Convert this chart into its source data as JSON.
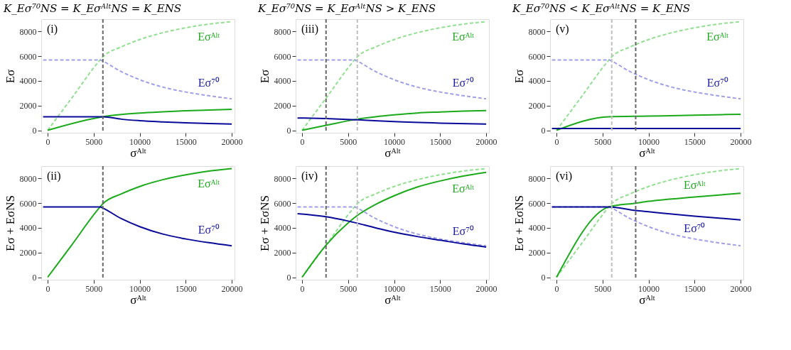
{
  "chart_data": [
    {
      "type": "line",
      "title": "K_Eσ⁷⁰NS = K_EσᴬˡᵗNS = K_ENS",
      "xlabel": "σᴬˡᵗ",
      "ylabel": "Eσ",
      "annotations": [
        "(i)"
      ],
      "xlim": [
        -700,
        20300
      ],
      "ylim": [
        -200,
        9000
      ],
      "xticks": [
        0,
        5000,
        10000,
        15000,
        20000
      ],
      "yticks": [
        0,
        2000,
        4000,
        6000,
        8000
      ],
      "grid": false,
      "series": [
        {
          "name": "Eσᴬˡᵗ",
          "color": "#90e090",
          "line_style": "dashed",
          "x": [
            0,
            2600,
            5700,
            6000,
            8000,
            10000,
            12500,
            15000,
            17500,
            20000
          ],
          "values": [
            0,
            2600,
            5700,
            5950,
            6750,
            7350,
            7900,
            8300,
            8600,
            8800
          ]
        },
        {
          "name": "Eσ⁷⁰",
          "color": "#a0a0e8",
          "line_style": "dashed",
          "x": [
            -500,
            5700,
            6000,
            8000,
            10000,
            12500,
            15000,
            17500,
            20000
          ],
          "values": [
            5700,
            5700,
            5600,
            4750,
            4100,
            3500,
            3100,
            2800,
            2550
          ]
        },
        {
          "color": "#1aaa1a",
          "line_style": "solid",
          "x": [
            0,
            6000,
            8000,
            10000,
            12500,
            15000,
            17500,
            20000
          ],
          "values": [
            0,
            1100,
            1280,
            1400,
            1500,
            1580,
            1640,
            1700
          ]
        },
        {
          "color": "#0a0a9a",
          "line_style": "solid",
          "x": [
            -500,
            6000,
            8000,
            10000,
            12500,
            15000,
            17500,
            20000
          ],
          "values": [
            1100,
            1100,
            900,
            780,
            680,
            600,
            550,
            500
          ]
        }
      ],
      "ref_lines": [
        {
          "axis": "x",
          "value": 6000,
          "color": "#666666",
          "line_style": "dashed"
        }
      ]
    },
    {
      "type": "line",
      "title": "K_Eσ⁷⁰NS = K_EσᴬˡᵗNS > K_ENS",
      "xlabel": "σᴬˡᵗ",
      "ylabel": "Eσ",
      "annotations": [
        "(iii)"
      ],
      "xlim": [
        -700,
        20300
      ],
      "ylim": [
        -200,
        9000
      ],
      "xticks": [
        0,
        5000,
        10000,
        15000,
        20000
      ],
      "yticks": [
        0,
        2000,
        4000,
        6000,
        8000
      ],
      "grid": false,
      "series": [
        {
          "name": "Eσᴬˡᵗ",
          "color": "#90e090",
          "line_style": "dashed",
          "x": [
            0,
            2600,
            5700,
            6000,
            8000,
            10000,
            12500,
            15000,
            17500,
            20000
          ],
          "values": [
            0,
            2600,
            5700,
            5950,
            6750,
            7350,
            7900,
            8300,
            8600,
            8800
          ]
        },
        {
          "name": "Eσ⁷⁰",
          "color": "#a0a0e8",
          "line_style": "dashed",
          "x": [
            -500,
            5700,
            6000,
            8000,
            10000,
            12500,
            15000,
            17500,
            20000
          ],
          "values": [
            5700,
            5700,
            5600,
            4750,
            4100,
            3500,
            3100,
            2800,
            2550
          ]
        },
        {
          "color": "#1aaa1a",
          "line_style": "solid",
          "x": [
            0,
            2600,
            6000,
            8000,
            10000,
            12500,
            15000,
            17500,
            20000
          ],
          "values": [
            0,
            400,
            900,
            1100,
            1250,
            1400,
            1480,
            1550,
            1600
          ]
        },
        {
          "color": "#0a0a9a",
          "line_style": "solid",
          "x": [
            -500,
            2600,
            6000,
            10000,
            15000,
            20000
          ],
          "values": [
            1000,
            950,
            850,
            700,
            580,
            500
          ]
        }
      ],
      "ref_lines": [
        {
          "axis": "x",
          "value": 2600,
          "color": "#666666",
          "line_style": "dashed"
        },
        {
          "axis": "x",
          "value": 6000,
          "color": "#c0c0c0",
          "line_style": "dashed"
        }
      ]
    },
    {
      "type": "line",
      "title": "K_Eσ⁷⁰NS < K_EσᴬˡᵗNS = K_ENS",
      "xlabel": "σᴬˡᵗ",
      "ylabel": "Eσ",
      "annotations": [
        "(v)"
      ],
      "xlim": [
        -700,
        20300
      ],
      "ylim": [
        -200,
        9000
      ],
      "xticks": [
        0,
        5000,
        10000,
        15000,
        20000
      ],
      "yticks": [
        0,
        2000,
        4000,
        6000,
        8000
      ],
      "grid": false,
      "series": [
        {
          "name": "Eσᴬˡᵗ",
          "color": "#90e090",
          "line_style": "dashed",
          "x": [
            0,
            2600,
            5700,
            6000,
            8000,
            10000,
            12500,
            15000,
            17500,
            20000
          ],
          "values": [
            0,
            2600,
            5700,
            5950,
            6750,
            7350,
            7900,
            8300,
            8600,
            8800
          ]
        },
        {
          "name": "Eσ⁷⁰",
          "color": "#a0a0e8",
          "line_style": "dashed",
          "x": [
            -500,
            5700,
            6000,
            8000,
            10000,
            12500,
            15000,
            17500,
            20000
          ],
          "values": [
            5700,
            5700,
            5600,
            4750,
            4100,
            3500,
            3100,
            2800,
            2550
          ]
        },
        {
          "color": "#1aaa1a",
          "line_style": "solid",
          "x": [
            0,
            5700,
            10000,
            15000,
            20000
          ],
          "values": [
            0,
            1100,
            1150,
            1220,
            1300
          ]
        },
        {
          "color": "#0a0a9a",
          "line_style": "solid",
          "x": [
            -500,
            20000
          ],
          "values": [
            150,
            150
          ]
        }
      ],
      "ref_lines": [
        {
          "axis": "x",
          "value": 6000,
          "color": "#c0c0c0",
          "line_style": "dashed"
        },
        {
          "axis": "x",
          "value": 8600,
          "color": "#666666",
          "line_style": "dashed"
        }
      ]
    },
    {
      "type": "line",
      "xlabel": "σᴬˡᵗ",
      "ylabel": "Eσ + EσNS",
      "annotations": [
        "(ii)"
      ],
      "xlim": [
        -700,
        20300
      ],
      "ylim": [
        -200,
        9000
      ],
      "xticks": [
        0,
        5000,
        10000,
        15000,
        20000
      ],
      "yticks": [
        0,
        2000,
        4000,
        6000,
        8000
      ],
      "grid": false,
      "series": [
        {
          "name": "Eσᴬˡᵗ",
          "color": "#1aaa1a",
          "line_style": "solid",
          "x": [
            0,
            2600,
            5700,
            6000,
            8000,
            10000,
            12500,
            15000,
            17500,
            20000
          ],
          "values": [
            0,
            2600,
            5700,
            5950,
            6750,
            7350,
            7900,
            8300,
            8600,
            8800
          ]
        },
        {
          "name": "Eσ⁷⁰",
          "color": "#0a0a9a",
          "line_style": "solid",
          "x": [
            -500,
            5700,
            6000,
            8000,
            10000,
            12500,
            15000,
            17500,
            20000
          ],
          "values": [
            5700,
            5700,
            5600,
            4750,
            4100,
            3500,
            3100,
            2800,
            2550
          ]
        }
      ],
      "ref_lines": [
        {
          "axis": "x",
          "value": 6000,
          "color": "#666666",
          "line_style": "dashed"
        }
      ]
    },
    {
      "type": "line",
      "xlabel": "σᴬˡᵗ",
      "ylabel": "Eσ + EσNS",
      "annotations": [
        "(iv)"
      ],
      "xlim": [
        -700,
        20300
      ],
      "ylim": [
        -200,
        9000
      ],
      "xticks": [
        0,
        5000,
        10000,
        15000,
        20000
      ],
      "yticks": [
        0,
        2000,
        4000,
        6000,
        8000
      ],
      "grid": false,
      "series": [
        {
          "color": "#90e090",
          "line_style": "dashed",
          "x": [
            0,
            2600,
            5700,
            6000,
            8000,
            10000,
            12500,
            15000,
            17500,
            20000
          ],
          "values": [
            0,
            2600,
            5700,
            5950,
            6750,
            7350,
            7900,
            8300,
            8600,
            8800
          ]
        },
        {
          "color": "#a0a0e8",
          "line_style": "dashed",
          "x": [
            -500,
            5700,
            6000,
            8000,
            10000,
            12500,
            15000,
            17500,
            20000
          ],
          "values": [
            5700,
            5700,
            5600,
            4750,
            4100,
            3500,
            3100,
            2800,
            2550
          ]
        },
        {
          "name": "Eσᴬˡᵗ",
          "color": "#1aaa1a",
          "line_style": "solid",
          "x": [
            0,
            2600,
            5000,
            6000,
            8000,
            10000,
            12500,
            15000,
            17500,
            20000
          ],
          "values": [
            0,
            2600,
            4400,
            5000,
            5900,
            6600,
            7300,
            7800,
            8200,
            8500
          ]
        },
        {
          "name": "Eσ⁷⁰",
          "color": "#0a0a9a",
          "line_style": "solid",
          "x": [
            -500,
            2600,
            5000,
            8000,
            10000,
            12500,
            15000,
            17500,
            20000
          ],
          "values": [
            5150,
            4900,
            4550,
            4000,
            3650,
            3300,
            3000,
            2700,
            2450
          ]
        }
      ],
      "ref_lines": [
        {
          "axis": "x",
          "value": 2600,
          "color": "#666666",
          "line_style": "dashed"
        },
        {
          "axis": "x",
          "value": 6000,
          "color": "#c0c0c0",
          "line_style": "dashed"
        }
      ]
    },
    {
      "type": "line",
      "xlabel": "σᴬˡᵗ",
      "ylabel": "Eσ + EσNS",
      "annotations": [
        "(vi)"
      ],
      "xlim": [
        -700,
        20300
      ],
      "ylim": [
        -200,
        9000
      ],
      "xticks": [
        0,
        5000,
        10000,
        15000,
        20000
      ],
      "yticks": [
        0,
        2000,
        4000,
        6000,
        8000
      ],
      "grid": false,
      "series": [
        {
          "color": "#90e090",
          "line_style": "dashed",
          "x": [
            0,
            2600,
            5700,
            6000,
            8000,
            10000,
            12500,
            15000,
            17500,
            20000
          ],
          "values": [
            0,
            2600,
            5700,
            5950,
            6750,
            7350,
            7900,
            8300,
            8600,
            8800
          ]
        },
        {
          "color": "#a0a0e8",
          "line_style": "dashed",
          "x": [
            -500,
            5700,
            6000,
            8000,
            10000,
            12500,
            15000,
            17500,
            20000
          ],
          "values": [
            5700,
            5700,
            5600,
            4750,
            4100,
            3500,
            3100,
            2800,
            2550
          ]
        },
        {
          "name": "Eσᴬˡᵗ",
          "color": "#1aaa1a",
          "line_style": "solid",
          "x": [
            0,
            5700,
            8600,
            10000,
            15000,
            20000
          ],
          "values": [
            0,
            5700,
            6000,
            6150,
            6500,
            6800
          ]
        },
        {
          "name": "Eσ⁷⁰",
          "color": "#0a0a9a",
          "line_style": "solid",
          "x": [
            -500,
            5700,
            8600,
            10000,
            15000,
            20000
          ],
          "values": [
            5700,
            5700,
            5400,
            5300,
            4950,
            4650
          ]
        }
      ],
      "ref_lines": [
        {
          "axis": "x",
          "value": 6000,
          "color": "#c0c0c0",
          "line_style": "dashed"
        },
        {
          "axis": "x",
          "value": 8600,
          "color": "#666666",
          "line_style": "dashed"
        }
      ]
    }
  ]
}
